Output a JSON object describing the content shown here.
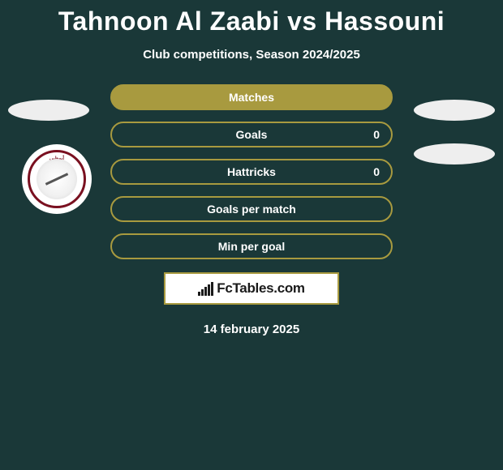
{
  "title": "Tahnoon Al Zaabi vs Hassouni",
  "subtitle": "Club competitions, Season 2024/2025",
  "stats": [
    {
      "label": "Matches",
      "filled": true,
      "value_right": null
    },
    {
      "label": "Goals",
      "filled": false,
      "value_right": "0"
    },
    {
      "label": "Hattricks",
      "filled": false,
      "value_right": "0"
    },
    {
      "label": "Goals per match",
      "filled": false,
      "value_right": null
    },
    {
      "label": "Min per goal",
      "filled": false,
      "value_right": null
    }
  ],
  "brand": "FcTables.com",
  "date": "14 february 2025",
  "colors": {
    "background": "#1a3838",
    "accent": "#a89a3f",
    "text": "#ffffff",
    "box_bg": "#ffffff",
    "ellipse": "#eeeeee",
    "logo_ring": "#7a1020"
  },
  "brand_bars": [
    5,
    8,
    11,
    14,
    17
  ]
}
